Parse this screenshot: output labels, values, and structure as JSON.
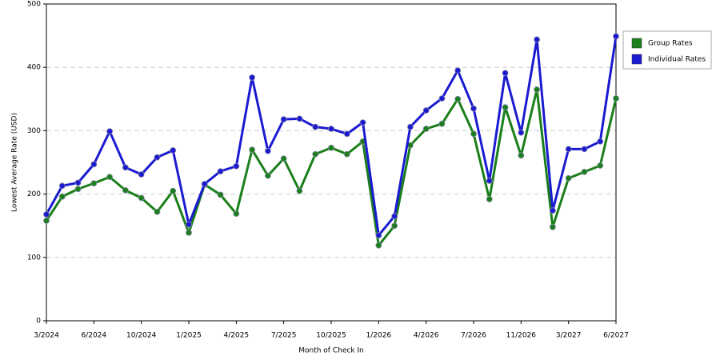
{
  "chart_data": {
    "type": "line",
    "x_label": "Month of Check In",
    "y_label": "Lowest Average Rate (USD)",
    "categories": [
      "3/2024",
      null,
      null,
      "6/2024",
      null,
      null,
      "10/2024",
      null,
      null,
      "1/2025",
      null,
      null,
      "4/2025",
      null,
      null,
      "7/2025",
      null,
      null,
      "10/2025",
      null,
      null,
      "1/2026",
      null,
      null,
      "4/2026",
      null,
      null,
      "7/2026",
      null,
      null,
      "11/2026",
      null,
      null,
      "3/2027",
      null,
      null,
      "6/2027"
    ],
    "series": [
      {
        "name": "Group Rates",
        "color": "#1a7f1a",
        "values": [
          158,
          196,
          208,
          217,
          227,
          206,
          194,
          172,
          205,
          139,
          215,
          199,
          169,
          270,
          229,
          256,
          205,
          263,
          273,
          263,
          283,
          119,
          150,
          277,
          303,
          311,
          350,
          295,
          192,
          337,
          261,
          365,
          148,
          225,
          235,
          245,
          351
        ]
      },
      {
        "name": "Individual Rates",
        "color": "#1a1ad0",
        "values": [
          168,
          213,
          218,
          247,
          299,
          242,
          231,
          258,
          269,
          152,
          216,
          236,
          244,
          384,
          268,
          318,
          319,
          306,
          303,
          295,
          313,
          135,
          165,
          306,
          332,
          351,
          395,
          335,
          221,
          391,
          297,
          444,
          174,
          271,
          271,
          283,
          449
        ]
      }
    ],
    "ylim": [
      0,
      500
    ],
    "yticks": [
      0,
      100,
      200,
      300,
      400,
      500
    ],
    "grid": true,
    "legend": "right"
  }
}
